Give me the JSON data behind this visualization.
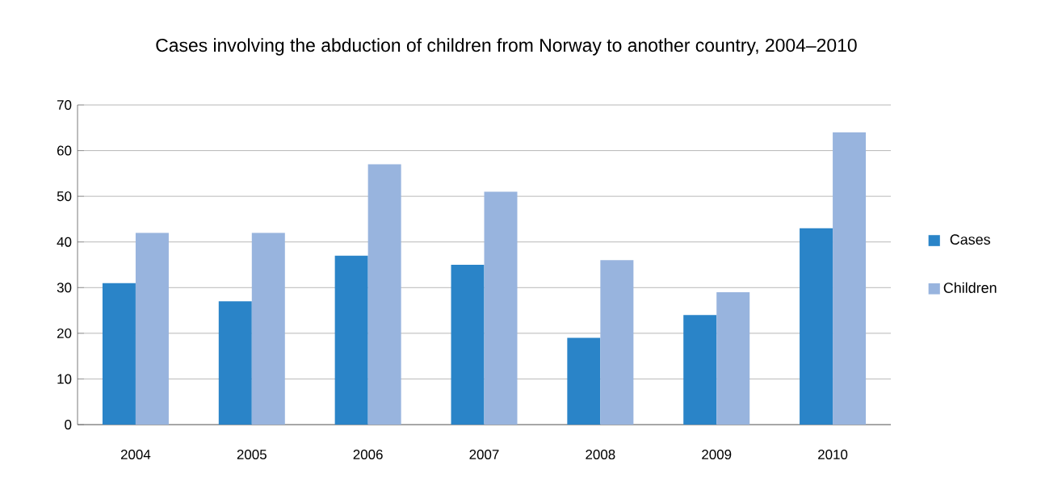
{
  "chart_data": {
    "type": "bar",
    "title": "Cases involving the abduction of children from Norway to another country, 2004–2010",
    "categories": [
      "2004",
      "2005",
      "2006",
      "2007",
      "2008",
      "2009",
      "2010"
    ],
    "series": [
      {
        "name": "Cases",
        "color": "#2a84c8",
        "values": [
          31,
          27,
          37,
          35,
          19,
          24,
          43
        ]
      },
      {
        "name": "Children",
        "color": "#98b4de",
        "values": [
          42,
          42,
          57,
          51,
          36,
          29,
          64
        ]
      }
    ],
    "ylim": [
      0,
      70
    ],
    "yticks": [
      0,
      10,
      20,
      30,
      40,
      50,
      60,
      70
    ],
    "grid": "y",
    "legend": "right"
  }
}
